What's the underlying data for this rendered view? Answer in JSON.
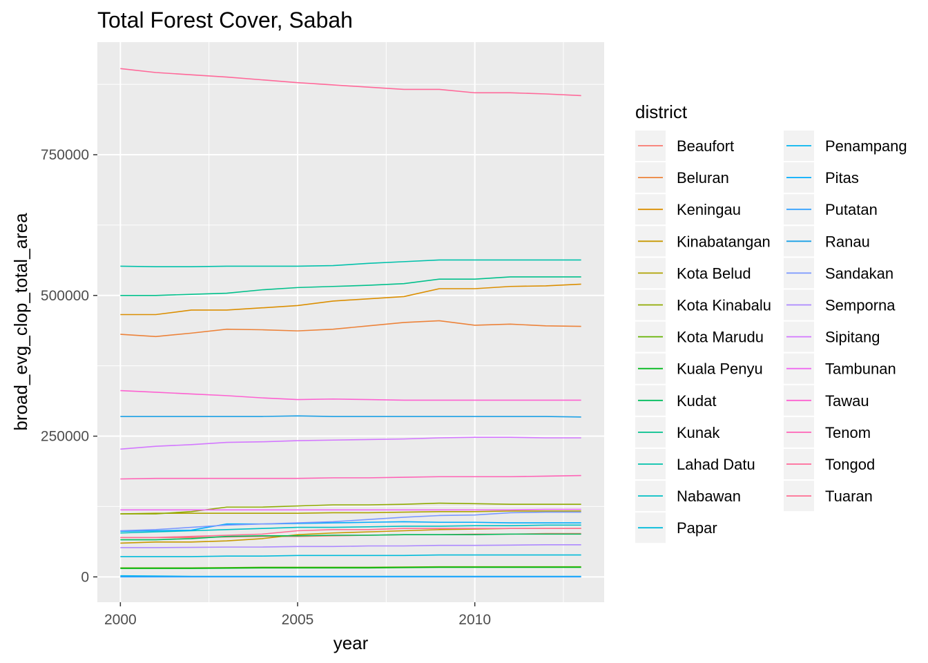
{
  "chart_data": {
    "type": "line",
    "title": "Total Forest Cover, Sabah",
    "xlabel": "year",
    "ylabel": "broad_evg_clop_total_area",
    "xlim": [
      1999.35,
      2013.65
    ],
    "ylim": [
      -45000,
      950000
    ],
    "x_ticks": [
      2000,
      2005,
      2010
    ],
    "x_tick_labels": [
      "2000",
      "2005",
      "2010"
    ],
    "y_ticks": [
      0,
      250000,
      500000,
      750000
    ],
    "y_tick_labels": [
      "0",
      "250000",
      "500000",
      "750000"
    ],
    "panel_background": "#ebebeb",
    "grid": true,
    "legend_title": "district",
    "legend_position": "right",
    "x": [
      2000,
      2001,
      2002,
      2003,
      2004,
      2005,
      2006,
      2007,
      2008,
      2009,
      2010,
      2011,
      2012,
      2013
    ],
    "series": [
      {
        "name": "Beaufort",
        "color": "#F8766D",
        "values": [
          70000,
          70000,
          70000,
          71000,
          72000,
          72000,
          73000,
          74000,
          75000,
          75000,
          76000,
          76000,
          77000,
          77000
        ]
      },
      {
        "name": "Beluran",
        "color": "#EC8239",
        "values": [
          431000,
          427000,
          433000,
          440000,
          439000,
          437000,
          440000,
          446000,
          452000,
          455000,
          447000,
          449000,
          446000,
          445000
        ]
      },
      {
        "name": "Keningau",
        "color": "#DB8E00",
        "values": [
          466000,
          466000,
          474000,
          474000,
          478000,
          482000,
          490000,
          494000,
          498000,
          512000,
          512000,
          516000,
          517000,
          520000
        ]
      },
      {
        "name": "Kinabatangan",
        "color": "#C79800",
        "values": [
          60000,
          62000,
          62000,
          64000,
          68000,
          75000,
          78000,
          80000,
          82000,
          84000,
          85000,
          86000,
          86000,
          86000
        ]
      },
      {
        "name": "Kota Belud",
        "color": "#AEA200",
        "values": [
          112000,
          113000,
          113000,
          113000,
          113000,
          113000,
          114000,
          114000,
          115000,
          116000,
          116000,
          117000,
          117000,
          117000
        ]
      },
      {
        "name": "Kota Kinabalu",
        "color": "#8FAA00",
        "values": [
          112000,
          112000,
          116000,
          124000,
          124000,
          126000,
          128000,
          128000,
          129000,
          131000,
          130000,
          129000,
          129000,
          129000
        ]
      },
      {
        "name": "Kota Marudu",
        "color": "#64B200",
        "values": [
          16000,
          16000,
          16000,
          16500,
          17000,
          17000,
          17000,
          17000,
          17500,
          18000,
          18000,
          18000,
          18000,
          18000
        ]
      },
      {
        "name": "Kuala Penyu",
        "color": "#00B81B",
        "values": [
          15000,
          15000,
          15000,
          15500,
          16000,
          16000,
          16000,
          16000,
          16500,
          17000,
          17000,
          17000,
          17000,
          17000
        ]
      },
      {
        "name": "Kudat",
        "color": "#00BD5C",
        "values": [
          66000,
          66000,
          68000,
          72000,
          73000,
          73000,
          74000,
          74000,
          75000,
          75000,
          75000,
          76000,
          76000,
          76000
        ]
      },
      {
        "name": "Kunak",
        "color": "#00C08B",
        "values": [
          500000,
          500000,
          502000,
          504000,
          510000,
          514000,
          516000,
          518000,
          521000,
          529000,
          529000,
          533000,
          533000,
          533000
        ]
      },
      {
        "name": "Lahad Datu",
        "color": "#00C1AA",
        "values": [
          552000,
          551000,
          551000,
          552000,
          552000,
          552000,
          553000,
          557000,
          560000,
          563000,
          563000,
          563000,
          563000,
          563000
        ]
      },
      {
        "name": "Nabawan",
        "color": "#00BFC4",
        "values": [
          78000,
          80000,
          82000,
          84000,
          86000,
          88000,
          88000,
          89000,
          90000,
          90000,
          91000,
          91000,
          92000,
          92000
        ]
      },
      {
        "name": "Papar",
        "color": "#00BBDA",
        "values": [
          36000,
          36000,
          36000,
          37000,
          37000,
          38000,
          38000,
          38000,
          38000,
          39000,
          39000,
          39000,
          39000,
          39000
        ]
      },
      {
        "name": "Penampang",
        "color": "#00B4EF",
        "values": [
          2000,
          1500,
          1000,
          1000,
          1000,
          1000,
          1000,
          1000,
          1000,
          1000,
          1000,
          1000,
          1000,
          1000
        ]
      },
      {
        "name": "Pitas",
        "color": "#00ACFC",
        "values": [
          81000,
          82000,
          83000,
          94000,
          94000,
          95000,
          96000,
          97000,
          98000,
          97000,
          97000,
          96000,
          96000,
          96000
        ]
      },
      {
        "name": "Putatan",
        "color": "#35A2FF",
        "values": [
          0,
          0,
          0,
          0,
          0,
          0,
          0,
          0,
          0,
          0,
          0,
          0,
          0,
          0
        ]
      },
      {
        "name": "Ranau",
        "color": "#1AA0E6",
        "values": [
          285000,
          285000,
          285000,
          285000,
          285000,
          286000,
          285000,
          285000,
          285000,
          285000,
          285000,
          285000,
          285000,
          284000
        ]
      },
      {
        "name": "Sandakan",
        "color": "#7997FF",
        "values": [
          82000,
          84000,
          88000,
          92000,
          94000,
          96000,
          98000,
          102000,
          106000,
          109000,
          110000,
          114000,
          115000,
          115000
        ]
      },
      {
        "name": "Semporna",
        "color": "#AC88FF",
        "values": [
          52000,
          52000,
          52500,
          53000,
          53000,
          54000,
          54000,
          55000,
          55000,
          56000,
          56000,
          56500,
          57000,
          57000
        ]
      },
      {
        "name": "Sipitang",
        "color": "#D377FF",
        "values": [
          227000,
          232000,
          235000,
          239000,
          240000,
          242000,
          243000,
          244000,
          245000,
          247000,
          248000,
          248000,
          247000,
          247000
        ]
      },
      {
        "name": "Tambunan",
        "color": "#EE67F0",
        "values": [
          119000,
          119000,
          119000,
          119000,
          119000,
          119000,
          119000,
          119000,
          119000,
          119000,
          119000,
          119000,
          120000,
          120000
        ]
      },
      {
        "name": "Tawau",
        "color": "#FD61D1",
        "values": [
          331000,
          328000,
          325000,
          322000,
          318000,
          315000,
          316000,
          315000,
          314000,
          314000,
          314000,
          314000,
          314000,
          314000
        ]
      },
      {
        "name": "Tenom",
        "color": "#FF63B6",
        "values": [
          174000,
          175000,
          175000,
          175000,
          175000,
          175000,
          176000,
          176000,
          177000,
          178000,
          178000,
          178000,
          179000,
          180000
        ]
      },
      {
        "name": "Tongod",
        "color": "#FF6899",
        "values": [
          903000,
          896000,
          892000,
          888000,
          883000,
          878000,
          874000,
          870000,
          866000,
          866000,
          860000,
          860000,
          858000,
          855000
        ]
      },
      {
        "name": "Tuaran",
        "color": "#FF6C91",
        "values": [
          70000,
          70000,
          72000,
          74000,
          76000,
          82000,
          84000,
          84000,
          86000,
          86000,
          86000,
          86000,
          86000,
          86000
        ]
      }
    ]
  }
}
